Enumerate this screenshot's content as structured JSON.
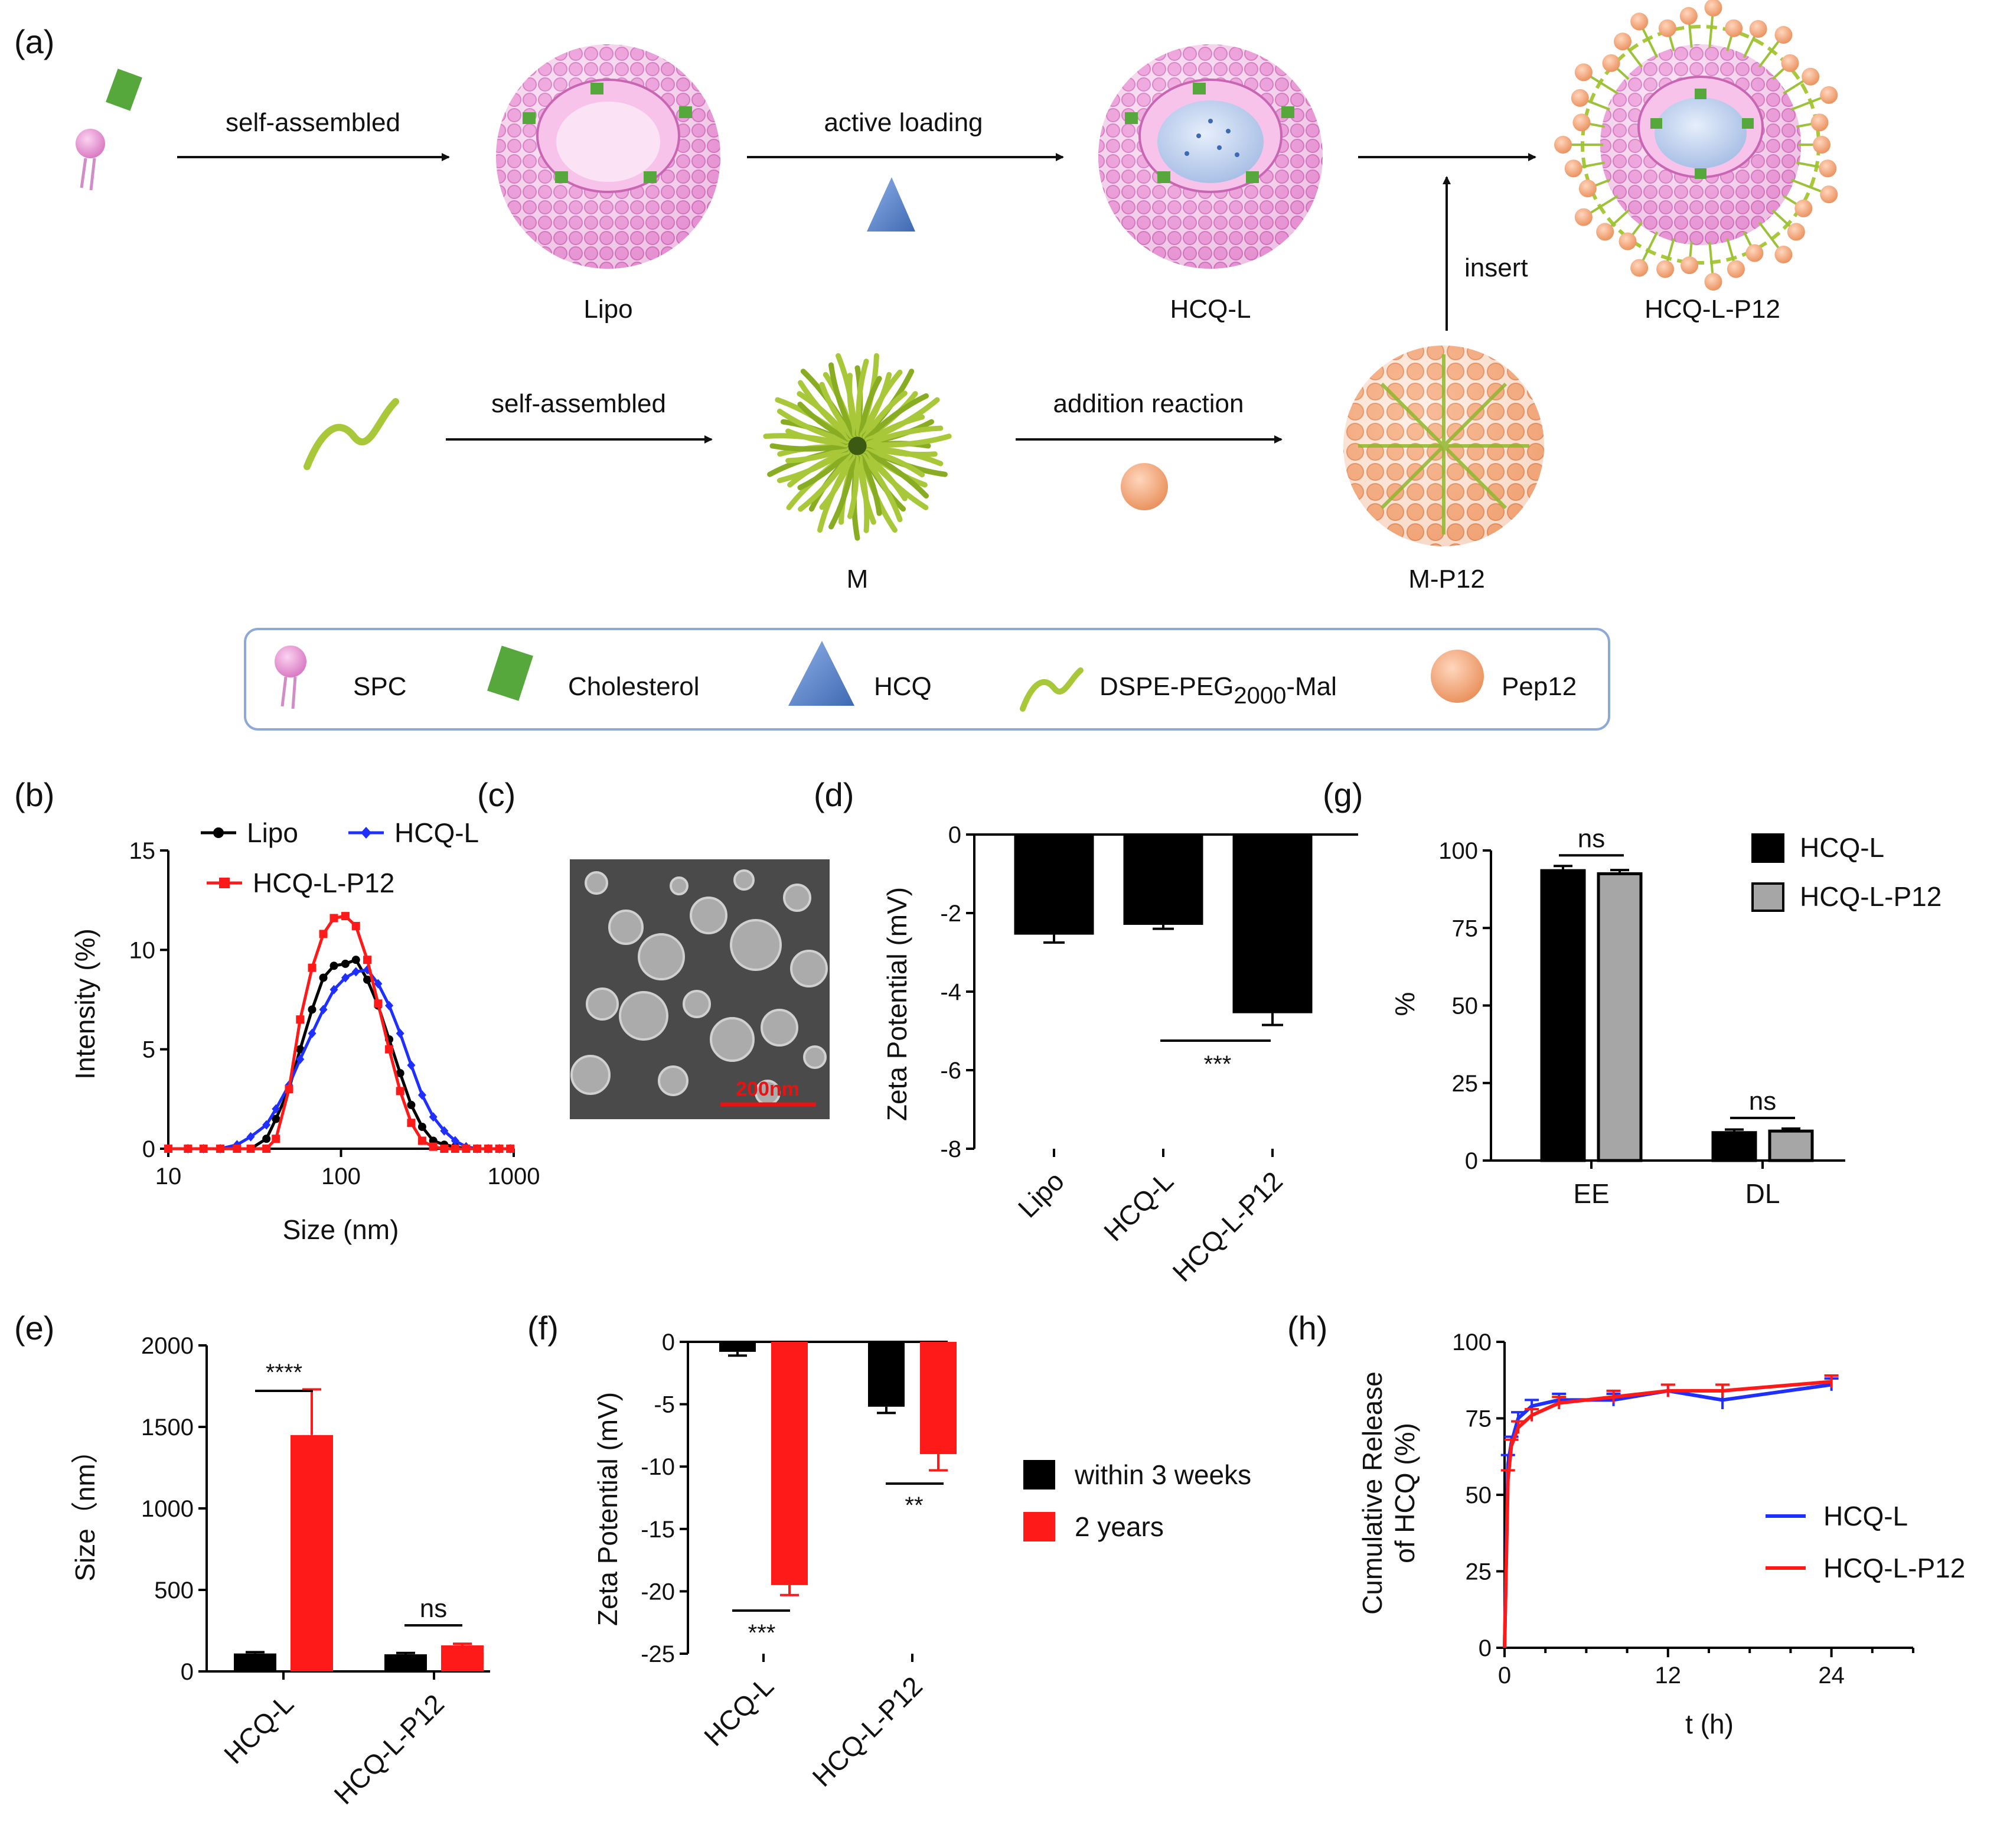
{
  "colors": {
    "black": "#000000",
    "red": "#ff1a1a",
    "blue": "#1f2fff",
    "gray": "#a6a6a6",
    "lipid": "#ec94d6",
    "cholesterol": "#56a83c",
    "hcq": "#5d87c9",
    "peg": "#a8c83a",
    "pep12": "#f3a77a",
    "legend_border": "#8ea8d8"
  },
  "panel_a": {
    "panel_label": "(a)",
    "arrow_self_assembled_1": "self-assembled",
    "arrow_active_loading": "active loading",
    "arrow_self_assembled_2": "self-assembled",
    "arrow_addition": "addition reaction",
    "arrow_insert": "insert",
    "labels": [
      "Lipo",
      "HCQ-L",
      "HCQ-L-P12",
      "M",
      "M-P12"
    ],
    "legend": [
      "SPC",
      "Cholesterol",
      "HCQ",
      "DSPE-PEG",
      "2000",
      "-Mal",
      "Pep12"
    ]
  },
  "panel_c": {
    "panel_label": "(c)",
    "scale_text": "200nm"
  },
  "chart_data": [
    {
      "id": "b",
      "panel_label": "(b)",
      "type": "line",
      "xscale": "log",
      "xlabel": "Size (nm)",
      "ylabel": "Intensity (%)",
      "xlim": [
        10,
        1000
      ],
      "ylim": [
        0,
        15
      ],
      "xticks": [
        10,
        100,
        1000
      ],
      "yticks": [
        0,
        5,
        10,
        15
      ],
      "legend_loc": "top",
      "series": [
        {
          "name": "Lipo",
          "color": "#000000",
          "marker": "circle",
          "x": [
            10,
            13,
            16,
            20,
            25,
            30,
            37,
            42,
            50,
            58,
            68,
            79,
            91,
            106,
            122,
            142,
            164,
            190,
            220,
            255,
            295,
            342,
            396,
            458,
            530,
            614,
            712,
            825,
            955
          ],
          "y": [
            0,
            0,
            0,
            0,
            0,
            0,
            0.5,
            1.5,
            3,
            5,
            7,
            8.6,
            9.2,
            9.3,
            9.5,
            8.5,
            7.2,
            5.5,
            3.8,
            2.2,
            1.1,
            0.4,
            0.2,
            0.1,
            0,
            0,
            0,
            0,
            0
          ]
        },
        {
          "name": "HCQ-L",
          "color": "#1f2fff",
          "marker": "diamond",
          "x": [
            10,
            13,
            16,
            20,
            25,
            30,
            37,
            42,
            50,
            58,
            68,
            79,
            91,
            106,
            122,
            142,
            164,
            190,
            220,
            255,
            295,
            342,
            396,
            458,
            530,
            614,
            712,
            825,
            955
          ],
          "y": [
            0,
            0,
            0,
            0,
            0.2,
            0.6,
            1.2,
            2,
            3.2,
            4.5,
            5.8,
            7,
            8,
            8.6,
            8.9,
            9,
            8.3,
            7.2,
            5.8,
            4.2,
            2.7,
            1.6,
            0.9,
            0.4,
            0.1,
            0,
            0,
            0,
            0
          ]
        },
        {
          "name": "HCQ-L-P12",
          "color": "#ff1a1a",
          "marker": "square",
          "x": [
            10,
            13,
            16,
            20,
            25,
            30,
            37,
            42,
            50,
            58,
            68,
            79,
            91,
            106,
            122,
            142,
            164,
            190,
            220,
            255,
            295,
            342,
            396,
            458,
            530,
            614,
            712,
            825,
            955
          ],
          "y": [
            0,
            0,
            0,
            0,
            0,
            0,
            0,
            0.5,
            3,
            6.5,
            9.1,
            10.8,
            11.6,
            11.7,
            11.2,
            9.5,
            7.3,
            5,
            2.9,
            1.3,
            0.4,
            0.1,
            0,
            0,
            0,
            0,
            0,
            0,
            0
          ]
        }
      ]
    },
    {
      "id": "d",
      "panel_label": "(d)",
      "type": "bar",
      "ylabel": "Zeta Potential (mV)",
      "ylim": [
        -8,
        0
      ],
      "yticks": [
        0,
        -2,
        -4,
        -6,
        -8
      ],
      "categories": [
        "Lipo",
        "HCQ-L",
        "HCQ-L-P12"
      ],
      "values": [
        -2.55,
        -2.3,
        -4.55
      ],
      "errors": [
        0.2,
        0.1,
        0.3
      ],
      "significance": "***"
    },
    {
      "id": "g",
      "panel_label": "(g)",
      "type": "bar",
      "ylabel": "%",
      "ylim": [
        0,
        100
      ],
      "yticks": [
        0,
        25,
        50,
        75,
        100
      ],
      "categories": [
        "EE",
        "DL"
      ],
      "series": [
        {
          "name": "HCQ-L",
          "color": "#000000",
          "values": [
            93.5,
            9.0
          ],
          "errors": [
            1.5,
            1.0
          ]
        },
        {
          "name": "HCQ-L-P12",
          "color": "#a6a6a6",
          "values": [
            92.5,
            9.5
          ],
          "errors": [
            1.2,
            0.8
          ]
        }
      ],
      "significance": [
        "ns",
        "ns"
      ]
    },
    {
      "id": "e",
      "panel_label": "(e)",
      "type": "bar",
      "ylabel": "Size（nm）",
      "ylim": [
        0,
        2000
      ],
      "yticks": [
        0,
        500,
        1000,
        1500,
        2000
      ],
      "categories": [
        "HCQ-L",
        "HCQ-L-P12"
      ],
      "series": [
        {
          "name": "within 3 weeks",
          "color": "#000000",
          "values": [
            110,
            105
          ],
          "errors": [
            8,
            8
          ]
        },
        {
          "name": "2 years",
          "color": "#ff1a1a",
          "values": [
            1450,
            160
          ],
          "errors": [
            280,
            10
          ]
        }
      ],
      "significance": [
        "****",
        "ns"
      ]
    },
    {
      "id": "f",
      "panel_label": "(f)",
      "type": "bar",
      "ylabel": "Zeta Potential (mV)",
      "ylim": [
        -25,
        0
      ],
      "yticks": [
        0,
        -5,
        -10,
        -15,
        -20,
        -25
      ],
      "categories": [
        "HCQ-L",
        "HCQ-L-P12"
      ],
      "series": [
        {
          "name": "within 3 weeks",
          "color": "#000000",
          "values": [
            -0.8,
            -5.2
          ],
          "errors": [
            0.3,
            0.5
          ]
        },
        {
          "name": "2 years",
          "color": "#ff1a1a",
          "values": [
            -19.5,
            -9.0
          ],
          "errors": [
            0.8,
            1.3
          ]
        }
      ],
      "significance": [
        "***",
        "**"
      ],
      "legend": [
        "within 3 weeks",
        "2 years"
      ]
    },
    {
      "id": "h",
      "panel_label": "(h)",
      "type": "line",
      "xlabel": "t (h)",
      "ylabel_line1": "Cumulative Release",
      "ylabel_line2": "of HCQ (%)",
      "xlim": [
        0,
        30
      ],
      "ylim": [
        0,
        100
      ],
      "xticks": [
        0,
        12,
        24
      ],
      "yticks": [
        0,
        25,
        50,
        75,
        100
      ],
      "series": [
        {
          "name": "HCQ-L",
          "color": "#1f2fff",
          "x": [
            0,
            0.25,
            0.5,
            1,
            2,
            4,
            8,
            12,
            16,
            24
          ],
          "y": [
            0,
            60,
            67,
            75,
            79,
            81,
            81,
            84,
            81,
            86
          ],
          "errors": [
            0,
            3,
            2,
            2,
            2,
            2,
            2,
            2,
            3,
            2
          ]
        },
        {
          "name": "HCQ-L-P12",
          "color": "#ff1a1a",
          "x": [
            0,
            0.25,
            0.5,
            1,
            2,
            4,
            8,
            12,
            16,
            24
          ],
          "y": [
            0,
            55,
            66,
            72,
            76,
            80,
            82,
            84,
            84,
            87
          ],
          "errors": [
            0,
            3,
            2,
            2,
            2,
            2,
            2,
            2,
            2,
            2
          ]
        }
      ]
    }
  ]
}
